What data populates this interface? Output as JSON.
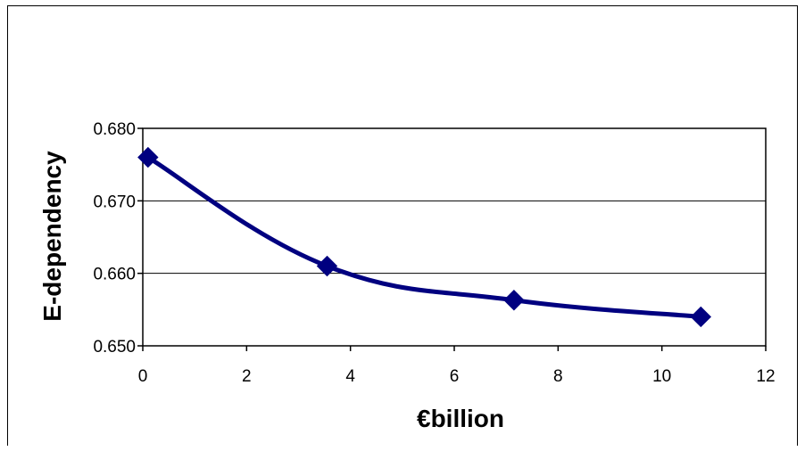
{
  "chart_data": {
    "type": "line",
    "title": "",
    "xlabel": "€billion",
    "ylabel": "E-dependency",
    "xlim": [
      0,
      12
    ],
    "ylim": [
      0.65,
      0.68
    ],
    "x_ticks": [
      0,
      2,
      4,
      6,
      8,
      10,
      12
    ],
    "y_ticks": [
      0.65,
      0.66,
      0.67,
      0.68
    ],
    "x_tick_labels": [
      "0",
      "2",
      "4",
      "6",
      "8",
      "10",
      "12"
    ],
    "y_tick_labels": [
      "0.650",
      "0.660",
      "0.670",
      "0.680"
    ],
    "grid": "horizontal",
    "legend": "none",
    "series": [
      {
        "x": [
          0.1,
          3.55,
          7.15,
          10.75
        ],
        "y": [
          0.676,
          0.661,
          0.6563,
          0.654
        ],
        "color": "#000080",
        "marker": "diamond",
        "smooth": true
      }
    ]
  }
}
